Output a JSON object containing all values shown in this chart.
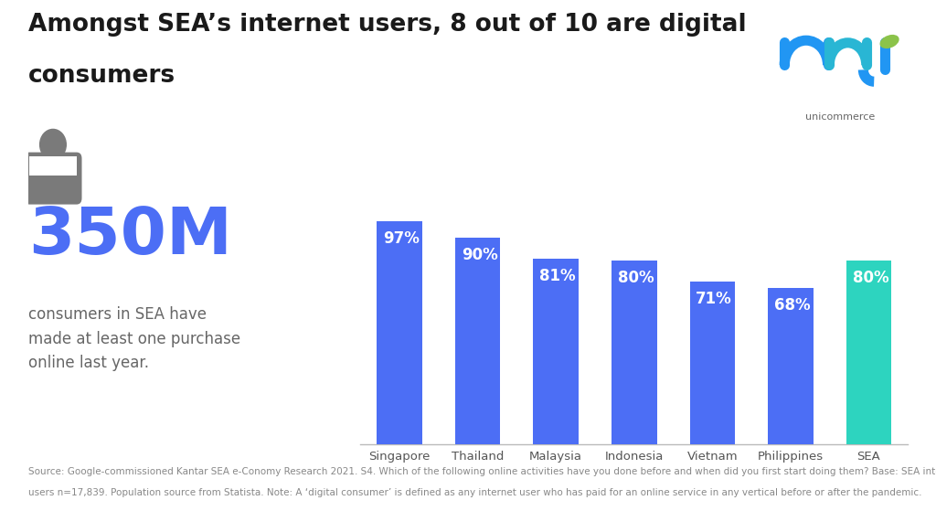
{
  "title_line1": "Amongst SEA’s internet users, 8 out of 10 are digital",
  "title_line2": "consumers",
  "categories": [
    "Singapore",
    "Thailand",
    "Malaysia",
    "Indonesia",
    "Vietnam",
    "Philippines",
    "SEA"
  ],
  "values": [
    97,
    90,
    81,
    80,
    71,
    68,
    80
  ],
  "bar_colors": [
    "#4C6EF5",
    "#4C6EF5",
    "#4C6EF5",
    "#4C6EF5",
    "#4C6EF5",
    "#4C6EF5",
    "#2DD4BF"
  ],
  "big_number": "350M",
  "big_number_color": "#4C6EF5",
  "sub_text": "consumers in SEA have\nmade at least one purchase\nonline last year.",
  "footnote_line1": "Source: Google-commissioned Kantar SEA e-Conomy Research 2021. S4. Which of the following online activities have you done before and when did you first start doing them? Base: SEA internet",
  "footnote_line2": "users n=17,839. Population source from Statista. Note: A ‘digital consumer’ is defined as any internet user who has paid for an online service in any vertical before or after the pandemic.",
  "background_color": "#FFFFFF",
  "bar_label_color": "#FFFFFF",
  "text_color": "#333333",
  "icon_color": "#7A7A7A",
  "title_fontsize": 19,
  "bar_label_fontsize": 12,
  "tick_fontsize": 9.5,
  "footnote_fontsize": 7.5,
  "sub_text_fontsize": 12,
  "big_number_fontsize": 52
}
